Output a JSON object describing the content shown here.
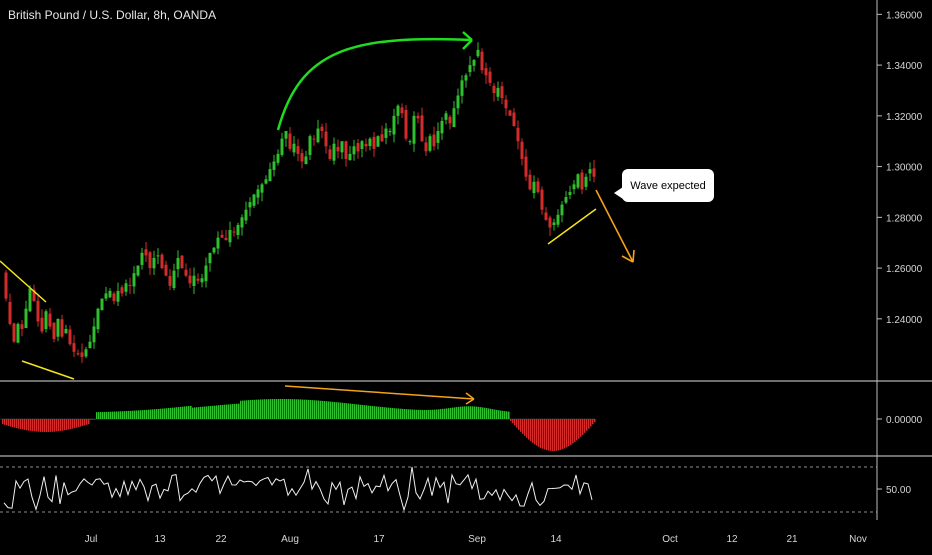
{
  "title": "British Pound / U.S. Dollar, 8h, OANDA",
  "annotation": "Wave expected",
  "colors": {
    "up": "#2fbf2f",
    "down": "#d42b2b",
    "curve": "#1fdc1f",
    "orange": "#f4a21a",
    "yellow": "#f4e51a",
    "grid": "#ffffff"
  },
  "chart_data": [
    {
      "type": "candlestick",
      "title": "British Pound / U.S. Dollar, 8h, OANDA",
      "x_ticks": [
        "Jul",
        "13",
        "22",
        "Aug",
        "17",
        "Sep",
        "14",
        "Oct",
        "12",
        "21",
        "Nov"
      ],
      "y_ticks": [
        "1.36000",
        "1.34000",
        "1.32000",
        "1.30000",
        "1.28000",
        "1.26000",
        "1.24000"
      ],
      "ylim": [
        1.2155,
        1.3625
      ],
      "close_path": [
        [
          0,
          1.257
        ],
        [
          4,
          1.248
        ],
        [
          8,
          1.238
        ],
        [
          12,
          1.231
        ],
        [
          16,
          1.238
        ],
        [
          20,
          1.236
        ],
        [
          24,
          1.244
        ],
        [
          28,
          1.252
        ],
        [
          32,
          1.247
        ],
        [
          36,
          1.239
        ],
        [
          40,
          1.235
        ],
        [
          44,
          1.243
        ],
        [
          48,
          1.237
        ],
        [
          52,
          1.232
        ],
        [
          56,
          1.24
        ],
        [
          60,
          1.233
        ],
        [
          64,
          1.236
        ],
        [
          68,
          1.23
        ],
        [
          72,
          1.227
        ],
        [
          76,
          1.226
        ],
        [
          80,
          1.225
        ],
        [
          84,
          1.228
        ],
        [
          88,
          1.231
        ],
        [
          92,
          1.237
        ],
        [
          96,
          1.244
        ],
        [
          100,
          1.248
        ],
        [
          104,
          1.25
        ],
        [
          108,
          1.251
        ],
        [
          112,
          1.247
        ],
        [
          116,
          1.251
        ],
        [
          120,
          1.25
        ],
        [
          124,
          1.254
        ],
        [
          128,
          1.253
        ],
        [
          132,
          1.258
        ],
        [
          136,
          1.261
        ],
        [
          140,
          1.266
        ],
        [
          144,
          1.265
        ],
        [
          148,
          1.26
        ],
        [
          152,
          1.264
        ],
        [
          156,
          1.265
        ],
        [
          160,
          1.26
        ],
        [
          164,
          1.257
        ],
        [
          168,
          1.253
        ],
        [
          172,
          1.259
        ],
        [
          176,
          1.264
        ],
        [
          180,
          1.26
        ],
        [
          184,
          1.257
        ],
        [
          188,
          1.254
        ],
        [
          192,
          1.257
        ],
        [
          196,
          1.255
        ],
        [
          200,
          1.256
        ],
        [
          204,
          1.261
        ],
        [
          208,
          1.266
        ],
        [
          212,
          1.268
        ],
        [
          216,
          1.272
        ],
        [
          220,
          1.272
        ],
        [
          224,
          1.271
        ],
        [
          228,
          1.275
        ],
        [
          232,
          1.274
        ],
        [
          236,
          1.277
        ],
        [
          240,
          1.28
        ],
        [
          244,
          1.283
        ],
        [
          248,
          1.286
        ],
        [
          252,
          1.289
        ],
        [
          256,
          1.291
        ],
        [
          260,
          1.293
        ],
        [
          264,
          1.295
        ],
        [
          268,
          1.299
        ],
        [
          272,
          1.302
        ],
        [
          276,
          1.305
        ],
        [
          280,
          1.311
        ],
        [
          284,
          1.314
        ],
        [
          288,
          1.307
        ],
        [
          292,
          1.309
        ],
        [
          296,
          1.305
        ],
        [
          300,
          1.302
        ],
        [
          304,
          1.304
        ],
        [
          308,
          1.312
        ],
        [
          312,
          1.311
        ],
        [
          316,
          1.315
        ],
        [
          320,
          1.314
        ],
        [
          324,
          1.308
        ],
        [
          328,
          1.303
        ],
        [
          332,
          1.309
        ],
        [
          336,
          1.306
        ],
        [
          340,
          1.31
        ],
        [
          344,
          1.303
        ],
        [
          348,
          1.305
        ],
        [
          352,
          1.308
        ],
        [
          356,
          1.306
        ],
        [
          360,
          1.31
        ],
        [
          364,
          1.308
        ],
        [
          368,
          1.311
        ],
        [
          372,
          1.307
        ],
        [
          376,
          1.312
        ],
        [
          380,
          1.31
        ],
        [
          384,
          1.315
        ],
        [
          388,
          1.314
        ],
        [
          392,
          1.32
        ],
        [
          396,
          1.324
        ],
        [
          400,
          1.321
        ],
        [
          404,
          1.311
        ],
        [
          408,
          1.31
        ],
        [
          412,
          1.32
        ],
        [
          416,
          1.319
        ],
        [
          420,
          1.31
        ],
        [
          424,
          1.306
        ],
        [
          428,
          1.312
        ],
        [
          432,
          1.308
        ],
        [
          436,
          1.314
        ],
        [
          440,
          1.318
        ],
        [
          444,
          1.321
        ],
        [
          448,
          1.317
        ],
        [
          452,
          1.323
        ],
        [
          456,
          1.328
        ],
        [
          460,
          1.334
        ],
        [
          464,
          1.336
        ],
        [
          468,
          1.34
        ],
        [
          472,
          1.342
        ],
        [
          476,
          1.346
        ],
        [
          480,
          1.338
        ],
        [
          484,
          1.336
        ],
        [
          488,
          1.333
        ],
        [
          492,
          1.329
        ],
        [
          496,
          1.331
        ],
        [
          500,
          1.327
        ],
        [
          504,
          1.323
        ],
        [
          508,
          1.32
        ],
        [
          512,
          1.316
        ],
        [
          516,
          1.31
        ],
        [
          520,
          1.303
        ],
        [
          524,
          1.296
        ],
        [
          528,
          1.291
        ],
        [
          532,
          1.294
        ],
        [
          536,
          1.29
        ],
        [
          540,
          1.283
        ],
        [
          544,
          1.279
        ],
        [
          548,
          1.276
        ],
        [
          552,
          1.278
        ],
        [
          556,
          1.281
        ],
        [
          560,
          1.285
        ],
        [
          564,
          1.288
        ],
        [
          568,
          1.29
        ],
        [
          572,
          1.293
        ],
        [
          576,
          1.297
        ],
        [
          580,
          1.291
        ],
        [
          584,
          1.296
        ],
        [
          588,
          1.299
        ],
        [
          592,
          1.296
        ]
      ]
    },
    {
      "type": "histogram",
      "y_ticks": [
        "0.00000"
      ],
      "x_ticks": [
        "Jul",
        "13",
        "22",
        "Aug",
        "17",
        "Sep",
        "14",
        "Oct",
        "12",
        "21",
        "Nov"
      ]
    },
    {
      "type": "line",
      "y_ticks": [
        "50.00"
      ],
      "x_ticks": [
        "Jul",
        "13",
        "22",
        "Aug",
        "17",
        "Sep",
        "14",
        "Oct",
        "12",
        "21",
        "Nov"
      ]
    }
  ]
}
